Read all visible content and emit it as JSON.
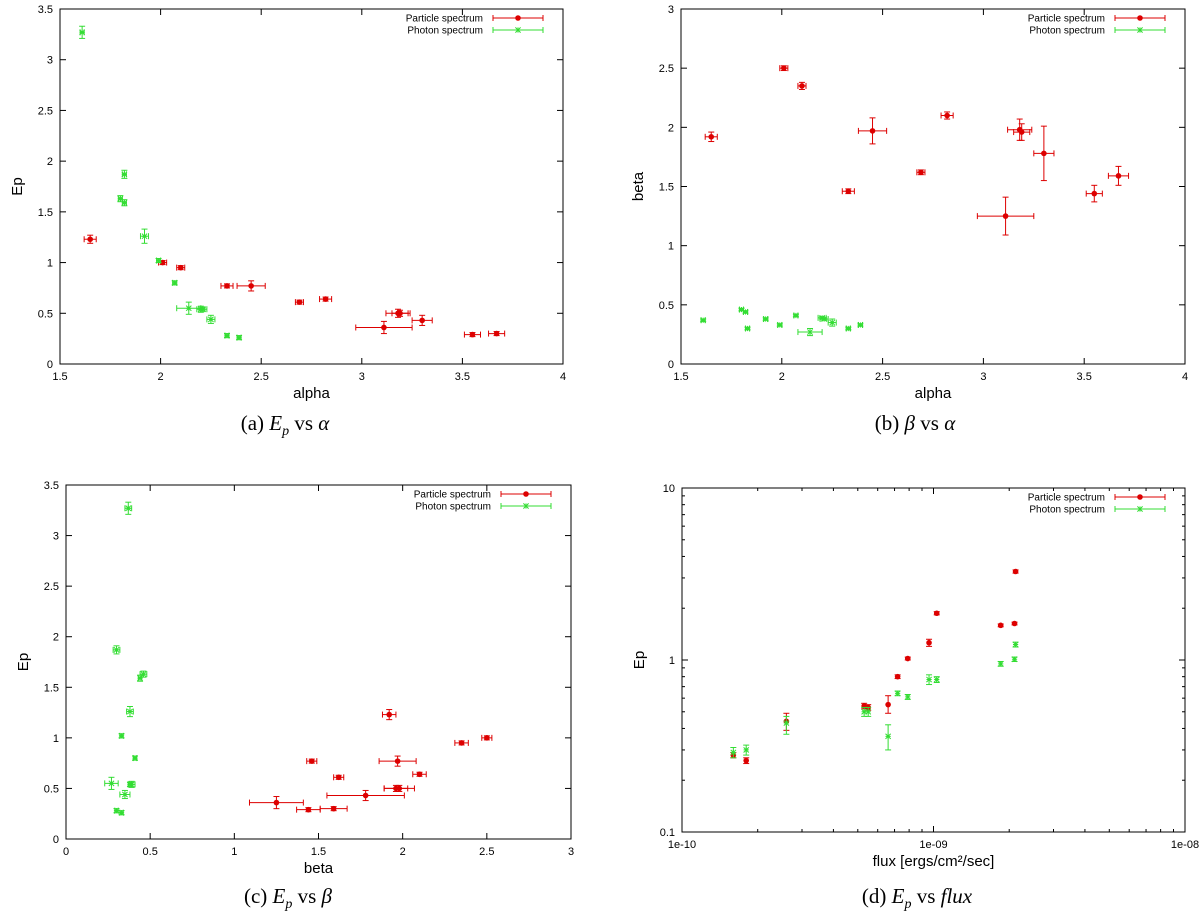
{
  "colors": {
    "particle": "#dd0000",
    "photon": "#33dd33"
  },
  "legend": {
    "particle": "Particle spectrum",
    "photon": "Photon spectrum"
  },
  "captions": [
    {
      "label": "(a)",
      "sym1": "E",
      "sub": "p",
      "mid": "vs",
      "sym2": "α"
    },
    {
      "label": "(b)",
      "sym1": "β",
      "sub": "",
      "mid": "vs",
      "sym2": "α"
    },
    {
      "label": "(c)",
      "sym1": "E",
      "sub": "p",
      "mid": "vs",
      "sym2": "β"
    },
    {
      "label": "(d)",
      "sym1": "E",
      "sub": "p",
      "mid": "vs",
      "sym2": "flux"
    }
  ],
  "chart_data": [
    {
      "type": "scatter",
      "title": "(a) Ep vs alpha",
      "xlabel": "alpha",
      "ylabel": "Ep",
      "xlim": [
        1.5,
        4
      ],
      "ylim": [
        0,
        3.5
      ],
      "xscale": "linear",
      "yscale": "linear",
      "xticks": [
        1.5,
        2,
        2.5,
        3,
        3.5,
        4
      ],
      "xtick_labels": [
        "1.5",
        "2",
        "2.5",
        "3",
        "3.5",
        "4"
      ],
      "yticks": [
        0,
        0.5,
        1,
        1.5,
        2,
        2.5,
        3,
        3.5
      ],
      "ytick_labels": [
        "0",
        "0.5",
        "1",
        "1.5",
        "2",
        "2.5",
        "3",
        "3.5"
      ],
      "series": [
        {
          "name": "Particle spectrum",
          "marker": "dot",
          "color_key": "particle",
          "points": [
            {
              "x": 1.65,
              "y": 1.23,
              "xe": 0.03,
              "ye": 0.04
            },
            {
              "x": 2.01,
              "y": 1.0,
              "xe": 0.02,
              "ye": 0.02
            },
            {
              "x": 2.1,
              "y": 0.95,
              "xe": 0.02,
              "ye": 0.02
            },
            {
              "x": 2.33,
              "y": 0.77,
              "xe": 0.03,
              "ye": 0.02
            },
            {
              "x": 2.45,
              "y": 0.77,
              "xe": 0.07,
              "ye": 0.05
            },
            {
              "x": 2.69,
              "y": 0.61,
              "xe": 0.02,
              "ye": 0.02
            },
            {
              "x": 2.82,
              "y": 0.64,
              "xe": 0.03,
              "ye": 0.02
            },
            {
              "x": 3.11,
              "y": 0.36,
              "xe": 0.14,
              "ye": 0.06
            },
            {
              "x": 3.18,
              "y": 0.5,
              "xe": 0.06,
              "ye": 0.04
            },
            {
              "x": 3.19,
              "y": 0.5,
              "xe": 0.04,
              "ye": 0.03
            },
            {
              "x": 3.3,
              "y": 0.43,
              "xe": 0.05,
              "ye": 0.05
            },
            {
              "x": 3.55,
              "y": 0.29,
              "xe": 0.04,
              "ye": 0.02
            },
            {
              "x": 3.67,
              "y": 0.3,
              "xe": 0.04,
              "ye": 0.02
            }
          ]
        },
        {
          "name": "Photon spectrum",
          "marker": "star",
          "color_key": "photon",
          "points": [
            {
              "x": 1.61,
              "y": 3.27,
              "xe": 0.01,
              "ye": 0.06
            },
            {
              "x": 1.8,
              "y": 1.63,
              "xe": 0.01,
              "ye": 0.03
            },
            {
              "x": 1.82,
              "y": 1.87,
              "xe": 0.01,
              "ye": 0.04
            },
            {
              "x": 1.82,
              "y": 1.59,
              "xe": 0.01,
              "ye": 0.03
            },
            {
              "x": 1.92,
              "y": 1.26,
              "xe": 0.02,
              "ye": 0.07
            },
            {
              "x": 1.99,
              "y": 1.02,
              "xe": 0.01,
              "ye": 0.02
            },
            {
              "x": 2.07,
              "y": 0.8,
              "xe": 0.01,
              "ye": 0.02
            },
            {
              "x": 2.14,
              "y": 0.55,
              "xe": 0.06,
              "ye": 0.06
            },
            {
              "x": 2.2,
              "y": 0.54,
              "xe": 0.02,
              "ye": 0.03
            },
            {
              "x": 2.21,
              "y": 0.54,
              "xe": 0.02,
              "ye": 0.02
            },
            {
              "x": 2.25,
              "y": 0.44,
              "xe": 0.02,
              "ye": 0.04
            },
            {
              "x": 2.33,
              "y": 0.28,
              "xe": 0.01,
              "ye": 0.02
            },
            {
              "x": 2.39,
              "y": 0.26,
              "xe": 0.01,
              "ye": 0.02
            }
          ]
        }
      ]
    },
    {
      "type": "scatter",
      "title": "(b) beta vs alpha",
      "xlabel": "alpha",
      "ylabel": "beta",
      "xlim": [
        1.5,
        4
      ],
      "ylim": [
        0,
        3
      ],
      "xscale": "linear",
      "yscale": "linear",
      "xticks": [
        1.5,
        2,
        2.5,
        3,
        3.5,
        4
      ],
      "xtick_labels": [
        "1.5",
        "2",
        "2.5",
        "3",
        "3.5",
        "4"
      ],
      "yticks": [
        0,
        0.5,
        1,
        1.5,
        2,
        2.5,
        3
      ],
      "ytick_labels": [
        "0",
        "0.5",
        "1",
        "1.5",
        "2",
        "2.5",
        "3"
      ],
      "series": [
        {
          "name": "Particle spectrum",
          "marker": "dot",
          "color_key": "particle",
          "points": [
            {
              "x": 1.65,
              "y": 1.92,
              "xe": 0.03,
              "ye": 0.04
            },
            {
              "x": 2.01,
              "y": 2.5,
              "xe": 0.02,
              "ye": 0.02
            },
            {
              "x": 2.1,
              "y": 2.35,
              "xe": 0.02,
              "ye": 0.03
            },
            {
              "x": 2.33,
              "y": 1.46,
              "xe": 0.03,
              "ye": 0.02
            },
            {
              "x": 2.45,
              "y": 1.97,
              "xe": 0.07,
              "ye": 0.11
            },
            {
              "x": 2.69,
              "y": 1.62,
              "xe": 0.02,
              "ye": 0.02
            },
            {
              "x": 2.82,
              "y": 2.1,
              "xe": 0.03,
              "ye": 0.03
            },
            {
              "x": 3.11,
              "y": 1.25,
              "xe": 0.14,
              "ye": 0.16
            },
            {
              "x": 3.18,
              "y": 1.98,
              "xe": 0.06,
              "ye": 0.09
            },
            {
              "x": 3.19,
              "y": 1.96,
              "xe": 0.04,
              "ye": 0.07
            },
            {
              "x": 3.3,
              "y": 1.78,
              "xe": 0.05,
              "ye": 0.23
            },
            {
              "x": 3.55,
              "y": 1.44,
              "xe": 0.04,
              "ye": 0.07
            },
            {
              "x": 3.67,
              "y": 1.59,
              "xe": 0.05,
              "ye": 0.08
            }
          ]
        },
        {
          "name": "Photon spectrum",
          "marker": "star",
          "color_key": "photon",
          "points": [
            {
              "x": 1.61,
              "y": 0.37,
              "xe": 0.01,
              "ye": 0.01
            },
            {
              "x": 1.8,
              "y": 0.46,
              "xe": 0.01,
              "ye": 0.01
            },
            {
              "x": 1.82,
              "y": 0.44,
              "xe": 0.01,
              "ye": 0.01
            },
            {
              "x": 1.83,
              "y": 0.3,
              "xe": 0.01,
              "ye": 0.01
            },
            {
              "x": 1.92,
              "y": 0.38,
              "xe": 0.01,
              "ye": 0.01
            },
            {
              "x": 1.99,
              "y": 0.33,
              "xe": 0.01,
              "ye": 0.01
            },
            {
              "x": 2.07,
              "y": 0.41,
              "xe": 0.01,
              "ye": 0.01
            },
            {
              "x": 2.14,
              "y": 0.27,
              "xe": 0.06,
              "ye": 0.03
            },
            {
              "x": 2.2,
              "y": 0.39,
              "xe": 0.02,
              "ye": 0.01
            },
            {
              "x": 2.21,
              "y": 0.38,
              "xe": 0.02,
              "ye": 0.01
            },
            {
              "x": 2.25,
              "y": 0.35,
              "xe": 0.02,
              "ye": 0.03
            },
            {
              "x": 2.33,
              "y": 0.3,
              "xe": 0.01,
              "ye": 0.01
            },
            {
              "x": 2.39,
              "y": 0.33,
              "xe": 0.01,
              "ye": 0.01
            }
          ]
        }
      ]
    },
    {
      "type": "scatter",
      "title": "(c) Ep vs beta",
      "xlabel": "beta",
      "ylabel": "Ep",
      "xlim": [
        0,
        3
      ],
      "ylim": [
        0,
        3.5
      ],
      "xscale": "linear",
      "yscale": "linear",
      "xticks": [
        0,
        0.5,
        1,
        1.5,
        2,
        2.5,
        3
      ],
      "xtick_labels": [
        "0",
        "0.5",
        "1",
        "1.5",
        "2",
        "2.5",
        "3"
      ],
      "yticks": [
        0,
        0.5,
        1,
        1.5,
        2,
        2.5,
        3,
        3.5
      ],
      "ytick_labels": [
        "0",
        "0.5",
        "1",
        "1.5",
        "2",
        "2.5",
        "3",
        "3.5"
      ],
      "series": [
        {
          "name": "Particle spectrum",
          "marker": "dot",
          "color_key": "particle",
          "points": [
            {
              "x": 1.92,
              "y": 1.23,
              "xe": 0.04,
              "ye": 0.05
            },
            {
              "x": 2.5,
              "y": 1.0,
              "xe": 0.03,
              "ye": 0.02
            },
            {
              "x": 2.35,
              "y": 0.95,
              "xe": 0.04,
              "ye": 0.02
            },
            {
              "x": 1.46,
              "y": 0.77,
              "xe": 0.03,
              "ye": 0.02
            },
            {
              "x": 1.97,
              "y": 0.77,
              "xe": 0.11,
              "ye": 0.05
            },
            {
              "x": 1.62,
              "y": 0.61,
              "xe": 0.03,
              "ye": 0.02
            },
            {
              "x": 2.1,
              "y": 0.64,
              "xe": 0.04,
              "ye": 0.02
            },
            {
              "x": 1.25,
              "y": 0.36,
              "xe": 0.16,
              "ye": 0.06
            },
            {
              "x": 1.98,
              "y": 0.5,
              "xe": 0.09,
              "ye": 0.03
            },
            {
              "x": 1.96,
              "y": 0.5,
              "xe": 0.07,
              "ye": 0.03
            },
            {
              "x": 1.78,
              "y": 0.43,
              "xe": 0.23,
              "ye": 0.05
            },
            {
              "x": 1.44,
              "y": 0.29,
              "xe": 0.07,
              "ye": 0.02
            },
            {
              "x": 1.59,
              "y": 0.3,
              "xe": 0.08,
              "ye": 0.02
            }
          ]
        },
        {
          "name": "Photon spectrum",
          "marker": "star",
          "color_key": "photon",
          "points": [
            {
              "x": 0.37,
              "y": 3.27,
              "xe": 0.02,
              "ye": 0.06
            },
            {
              "x": 0.3,
              "y": 1.87,
              "xe": 0.02,
              "ye": 0.04
            },
            {
              "x": 0.44,
              "y": 1.59,
              "xe": 0.01,
              "ye": 0.03
            },
            {
              "x": 0.46,
              "y": 1.63,
              "xe": 0.02,
              "ye": 0.03
            },
            {
              "x": 0.38,
              "y": 1.26,
              "xe": 0.02,
              "ye": 0.05
            },
            {
              "x": 0.33,
              "y": 1.02,
              "xe": 0.01,
              "ye": 0.02
            },
            {
              "x": 0.41,
              "y": 0.8,
              "xe": 0.01,
              "ye": 0.02
            },
            {
              "x": 0.27,
              "y": 0.55,
              "xe": 0.04,
              "ye": 0.06
            },
            {
              "x": 0.39,
              "y": 0.54,
              "xe": 0.02,
              "ye": 0.03
            },
            {
              "x": 0.38,
              "y": 0.54,
              "xe": 0.01,
              "ye": 0.02
            },
            {
              "x": 0.35,
              "y": 0.44,
              "xe": 0.03,
              "ye": 0.04
            },
            {
              "x": 0.3,
              "y": 0.28,
              "xe": 0.01,
              "ye": 0.02
            },
            {
              "x": 0.33,
              "y": 0.26,
              "xe": 0.01,
              "ye": 0.02
            }
          ]
        }
      ]
    },
    {
      "type": "scatter",
      "title": "(d) Ep vs flux",
      "xlabel": "flux [ergs/cm²/sec]",
      "ylabel": "Ep",
      "xlim": [
        1e-10,
        1e-08
      ],
      "ylim": [
        0.1,
        10
      ],
      "xscale": "log",
      "yscale": "log",
      "xticks": [
        1e-10,
        1e-09,
        1e-08
      ],
      "xtick_labels": [
        "1e-10",
        "1e-09",
        "1e-08"
      ],
      "yticks": [
        0.1,
        1,
        10
      ],
      "ytick_labels": [
        "0.1",
        "1",
        "10"
      ],
      "series": [
        {
          "name": "Particle spectrum",
          "marker": "dot",
          "color_key": "particle",
          "points": [
            {
              "x": 1.6e-10,
              "y": 0.28,
              "ylo": 0.27,
              "yhi": 0.29
            },
            {
              "x": 1.8e-10,
              "y": 0.26,
              "ylo": 0.25,
              "yhi": 0.27
            },
            {
              "x": 2.6e-10,
              "y": 0.44,
              "ylo": 0.39,
              "yhi": 0.49
            },
            {
              "x": 5.3e-10,
              "y": 0.54,
              "ylo": 0.52,
              "yhi": 0.56
            },
            {
              "x": 5.5e-10,
              "y": 0.53,
              "ylo": 0.51,
              "yhi": 0.55
            },
            {
              "x": 6.6e-10,
              "y": 0.55,
              "ylo": 0.49,
              "yhi": 0.62
            },
            {
              "x": 7.2e-10,
              "y": 0.8,
              "ylo": 0.78,
              "yhi": 0.82
            },
            {
              "x": 7.9e-10,
              "y": 1.02,
              "ylo": 1.0,
              "yhi": 1.04
            },
            {
              "x": 9.6e-10,
              "y": 1.26,
              "ylo": 1.2,
              "yhi": 1.32
            },
            {
              "x": 1.03e-09,
              "y": 1.87,
              "ylo": 1.83,
              "yhi": 1.91
            },
            {
              "x": 1.85e-09,
              "y": 1.59,
              "ylo": 1.56,
              "yhi": 1.62
            },
            {
              "x": 2.1e-09,
              "y": 1.63,
              "ylo": 1.6,
              "yhi": 1.66
            },
            {
              "x": 2.12e-09,
              "y": 3.27,
              "ylo": 3.2,
              "yhi": 3.34
            }
          ]
        },
        {
          "name": "Photon spectrum",
          "marker": "star",
          "color_key": "photon",
          "points": [
            {
              "x": 1.6e-10,
              "y": 0.29,
              "ylo": 0.27,
              "yhi": 0.31
            },
            {
              "x": 1.8e-10,
              "y": 0.3,
              "ylo": 0.28,
              "yhi": 0.32
            },
            {
              "x": 2.6e-10,
              "y": 0.43,
              "ylo": 0.37,
              "yhi": 0.47
            },
            {
              "x": 5.3e-10,
              "y": 0.5,
              "ylo": 0.47,
              "yhi": 0.53
            },
            {
              "x": 5.5e-10,
              "y": 0.5,
              "ylo": 0.47,
              "yhi": 0.53
            },
            {
              "x": 6.6e-10,
              "y": 0.36,
              "ylo": 0.3,
              "yhi": 0.42
            },
            {
              "x": 7.2e-10,
              "y": 0.64,
              "ylo": 0.62,
              "yhi": 0.66
            },
            {
              "x": 7.9e-10,
              "y": 0.61,
              "ylo": 0.59,
              "yhi": 0.63
            },
            {
              "x": 9.6e-10,
              "y": 0.77,
              "ylo": 0.72,
              "yhi": 0.82
            },
            {
              "x": 1.03e-09,
              "y": 0.77,
              "ylo": 0.74,
              "yhi": 0.8
            },
            {
              "x": 1.85e-09,
              "y": 0.95,
              "ylo": 0.92,
              "yhi": 0.98
            },
            {
              "x": 2.1e-09,
              "y": 1.01,
              "ylo": 0.98,
              "yhi": 1.04
            },
            {
              "x": 2.12e-09,
              "y": 1.23,
              "ylo": 1.19,
              "yhi": 1.27
            }
          ]
        }
      ]
    }
  ]
}
